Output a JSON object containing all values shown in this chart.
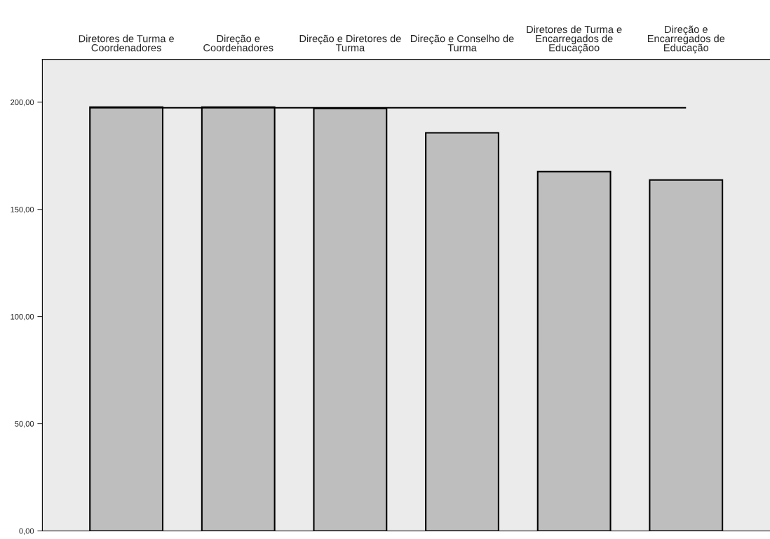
{
  "chart_data": {
    "type": "bar",
    "categories": [
      "Diretores de Turma e\nCoordenadores",
      "Direção e\nCoordenadores",
      "Direção e Diretores de\nTurma",
      "Direção e Conselho de\nTurma",
      "Diretores de Turma e\nEncarregados de\nEducaçãoo",
      "Direção e\nEncarregados de\nEducação"
    ],
    "values": [
      197.7,
      197.7,
      197.1,
      185.7,
      167.6,
      163.7
    ],
    "color": "#bebebe",
    "ylim": [
      0,
      220
    ],
    "yticks": [
      {
        "value": 0,
        "label": "0,00"
      },
      {
        "value": 50,
        "label": "50,00"
      },
      {
        "value": 100,
        "label": "100,00"
      },
      {
        "value": 150,
        "label": "150,00"
      },
      {
        "value": 200,
        "label": "200,00"
      }
    ],
    "ref_lines": [
      {
        "axis": "y",
        "value": 197.4,
        "color": "#000000"
      }
    ],
    "grid": false
  }
}
